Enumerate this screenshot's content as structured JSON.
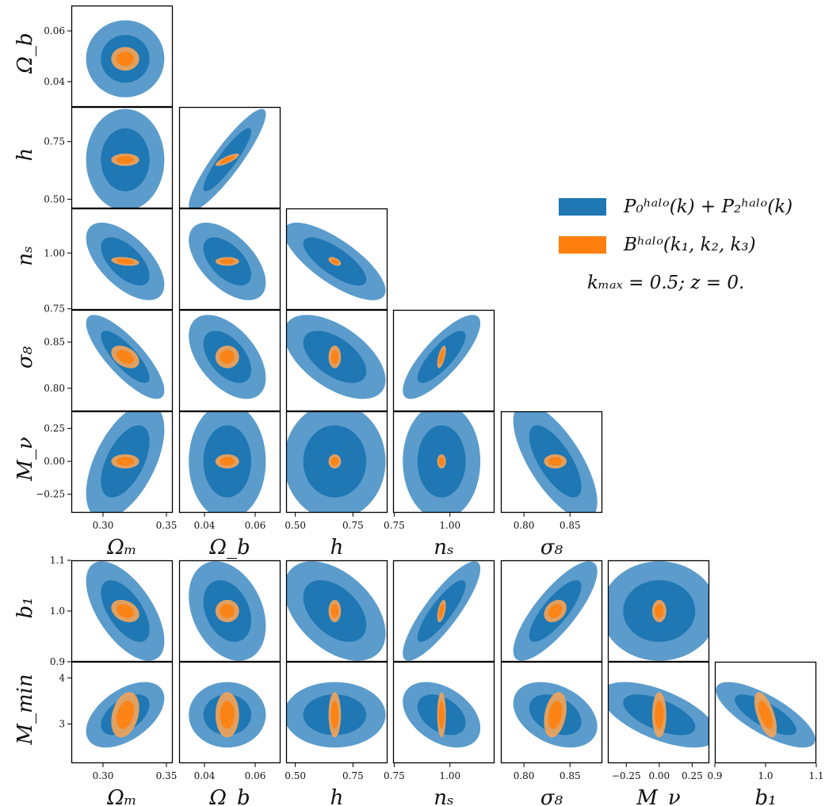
{
  "colors": {
    "blue_inner": "#1f77b4",
    "blue_outer": "#5b9ccc",
    "orange_inner": "#ff7f0e",
    "orange_outer": "#f5a458"
  },
  "legend": {
    "position": "right",
    "entries": [
      {
        "label": "P₀ʰᵃˡᵒ(k) + P₂ʰᵃˡᵒ(k)",
        "color": "#1f77b4"
      },
      {
        "label": "Bʰᵃˡᵒ(k₁, k₂, k₃)",
        "color": "#ff7f0e"
      }
    ],
    "note": "kₘₐₓ = 0.5; z = 0."
  },
  "chart_data": {
    "type": "scatter",
    "subtype": "corner-plot of 68% / 95% confidence ellipses",
    "grid": false,
    "series": [
      {
        "name": "P₀ʰᵃˡᵒ(k) + P₂ʰᵃˡᵒ(k)",
        "color": "#1f77b4"
      },
      {
        "name": "Bʰᵃˡᵒ(k₁, k₂, k₃)",
        "color": "#ff7f0e"
      }
    ],
    "parameters": [
      {
        "key": "Om",
        "label": "Ωₘ",
        "range": [
          0.275,
          0.355
        ],
        "ticks": [
          0.3,
          0.35
        ],
        "tick_labels": [
          "0.30",
          "0.35"
        ]
      },
      {
        "key": "Ob",
        "label": "Ω_b",
        "range": [
          0.03,
          0.07
        ],
        "ticks": [
          0.04,
          0.06
        ],
        "tick_labels": [
          "0.04",
          "0.06"
        ]
      },
      {
        "key": "h",
        "label": "h",
        "range": [
          0.46,
          0.9
        ],
        "ticks": [
          0.5,
          0.75
        ],
        "tick_labels": [
          "0.50",
          "0.75"
        ]
      },
      {
        "key": "ns",
        "label": "nₛ",
        "range": [
          0.745,
          1.2
        ],
        "ticks": [
          0.75,
          1.0
        ],
        "tick_labels": [
          "0.75",
          "1.00"
        ]
      },
      {
        "key": "s8",
        "label": "σ₈",
        "range": [
          0.775,
          0.885
        ],
        "ticks": [
          0.8,
          0.85
        ],
        "tick_labels": [
          "0.80",
          "0.85"
        ]
      },
      {
        "key": "Mnu",
        "label": "M_ν",
        "range": [
          -0.39,
          0.38
        ],
        "ticks": [
          -0.25,
          0.0,
          0.25
        ],
        "tick_labels": [
          "−0.25",
          "0.00",
          "0.25"
        ]
      },
      {
        "key": "b1",
        "label": "b₁",
        "range": [
          0.9,
          1.1
        ],
        "ticks": [
          0.9,
          1.0,
          1.1
        ],
        "tick_labels": [
          "0.9",
          "1.0",
          "1.1"
        ]
      },
      {
        "key": "Mmin",
        "label": "M_min",
        "range": [
          2.15,
          4.35
        ],
        "ticks": [
          3,
          4
        ],
        "tick_labels": [
          "3",
          "4"
        ]
      }
    ],
    "fiducial": {
      "Om": 0.3175,
      "Ob": 0.049,
      "h": 0.6711,
      "ns": 0.9624,
      "s8": 0.834,
      "Mnu": 0.0,
      "b1": 1.0,
      "Mmin": 3.2
    },
    "sigma": {
      "P": {
        "Om": 0.0126,
        "Ob": 0.0062,
        "h": 0.09,
        "ns": 0.071,
        "s8": 0.0186,
        "Mnu": 0.18,
        "b1": 0.04,
        "Mmin": 0.29
      },
      "B": {
        "Om": 0.0045,
        "Ob": 0.0019,
        "h": 0.011,
        "ns": 0.008,
        "s8": 0.005,
        "Mnu": 0.022,
        "b1": 0.009,
        "Mmin": 0.2
      }
    },
    "correlations": {
      "P": {
        "Ob|Om": 0.0,
        "h|Om": 0.0,
        "h|Ob": 0.9,
        "ns|Om": -0.6,
        "ns|Ob": -0.55,
        "ns|h": -0.75,
        "s8|Om": -0.8,
        "s8|Ob": -0.5,
        "s8|h": -0.55,
        "s8|ns": 0.8,
        "Mnu|Om": 0.55,
        "Mnu|Ob": 0.0,
        "Mnu|h": 0.0,
        "Mnu|ns": 0.0,
        "Mnu|s8": -0.7,
        "b1|Om": -0.6,
        "b1|Ob": -0.3,
        "b1|h": -0.45,
        "b1|ns": 0.85,
        "b1|s8": 0.8,
        "b1|Mnu": 0.0,
        "Mmin|Om": 0.5,
        "Mmin|Ob": 0.0,
        "Mmin|h": 0.0,
        "Mmin|ns": -0.4,
        "Mmin|s8": -0.35,
        "Mmin|Mnu": -0.6,
        "Mmin|b1": -0.75
      },
      "B": {
        "Ob|Om": 0.0,
        "h|Om": 0.0,
        "h|Ob": 0.8,
        "ns|Om": -0.3,
        "ns|Ob": 0.0,
        "ns|h": -0.5,
        "s8|Om": -0.4,
        "s8|Ob": 0.0,
        "s8|h": 0.0,
        "s8|ns": 0.6,
        "Mnu|Om": 0.0,
        "Mnu|Ob": 0.0,
        "Mnu|h": 0.0,
        "Mnu|ns": 0.0,
        "Mnu|s8": 0.0,
        "b1|Om": -0.3,
        "b1|Ob": 0.0,
        "b1|h": 0.0,
        "b1|ns": 0.5,
        "b1|s8": 0.3,
        "b1|Mnu": 0.0,
        "Mmin|Om": 0.3,
        "Mmin|Ob": 0.0,
        "Mmin|h": 0.0,
        "Mmin|ns": 0.0,
        "Mmin|s8": 0.3,
        "Mmin|Mnu": 0.0,
        "Mmin|b1": -0.6
      }
    },
    "contour_levels": [
      "68%",
      "95%"
    ]
  }
}
